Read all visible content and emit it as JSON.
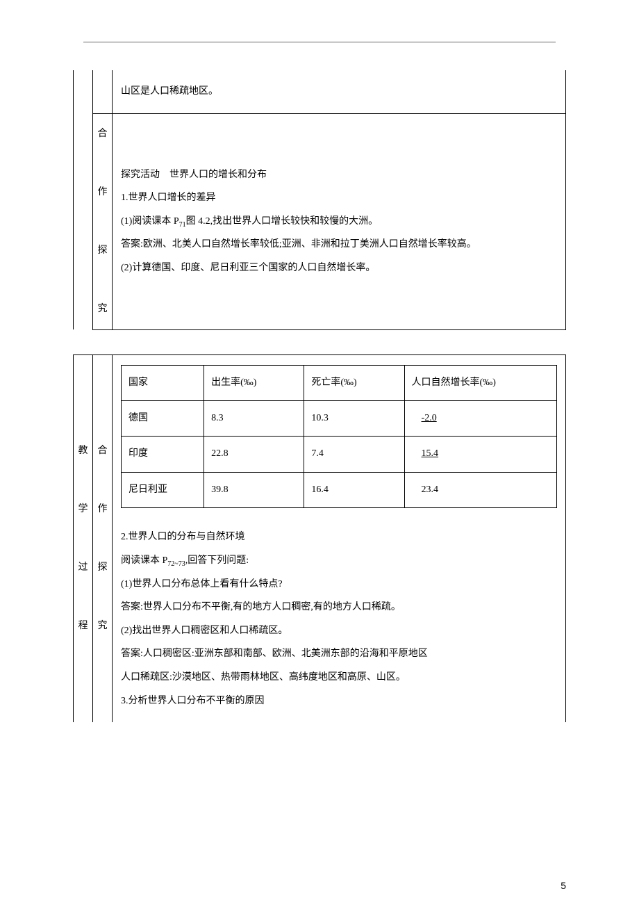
{
  "table1": {
    "row1_col2": "",
    "row1_content": "山区是人口稀疏地区。",
    "row2_vert": "合作探究",
    "row2_line1": "探究活动　世界人口的增长和分布",
    "row2_line2": "1.世界人口增长的差异",
    "row2_line3_a": "(1)阅读课本 P",
    "row2_line3_sub": "71",
    "row2_line3_b": "图 4.2,找出世界人口增长较快和较慢的大洲。",
    "row2_line4": "答案:欧洲、北美人口自然增长率较低;亚洲、非洲和拉丁美洲人口自然增长率较高。",
    "row2_line5": "(2)计算德国、印度、尼日利亚三个国家的人口自然增长率。"
  },
  "table2": {
    "left_vert": "教学过程",
    "mid_vert": "合作探究",
    "inner": {
      "header": {
        "country": "国家",
        "birth": "出生率(‰)",
        "death": "死亡率(‰)",
        "growth": "人口自然增长率(‰)"
      },
      "rows": [
        {
          "country": "德国",
          "birth": "8.3",
          "death": "10.3",
          "growth": "-2.0",
          "underline": true
        },
        {
          "country": "印度",
          "birth": "22.8",
          "death": "7.4",
          "growth": "15.4",
          "underline": true
        },
        {
          "country": "尼日利亚",
          "birth": "39.8",
          "death": "16.4",
          "growth": "23.4",
          "underline": false
        }
      ]
    },
    "line1": "2.世界人口的分布与自然环境",
    "line2_a": "阅读课本 P",
    "line2_sub": "72~73",
    "line2_b": ",回答下列问题:",
    "line3": "(1)世界人口分布总体上看有什么特点?",
    "line4": "答案:世界人口分布不平衡,有的地方人口稠密,有的地方人口稀疏。",
    "line5": "(2)找出世界人口稠密区和人口稀疏区。",
    "line6": "答案:人口稠密区:亚洲东部和南部、欧洲、北美洲东部的沿海和平原地区",
    "line7": "人口稀疏区:沙漠地区、热带雨林地区、高纬度地区和高原、山区。",
    "line8": "3.分析世界人口分布不平衡的原因"
  },
  "page_number": "5"
}
